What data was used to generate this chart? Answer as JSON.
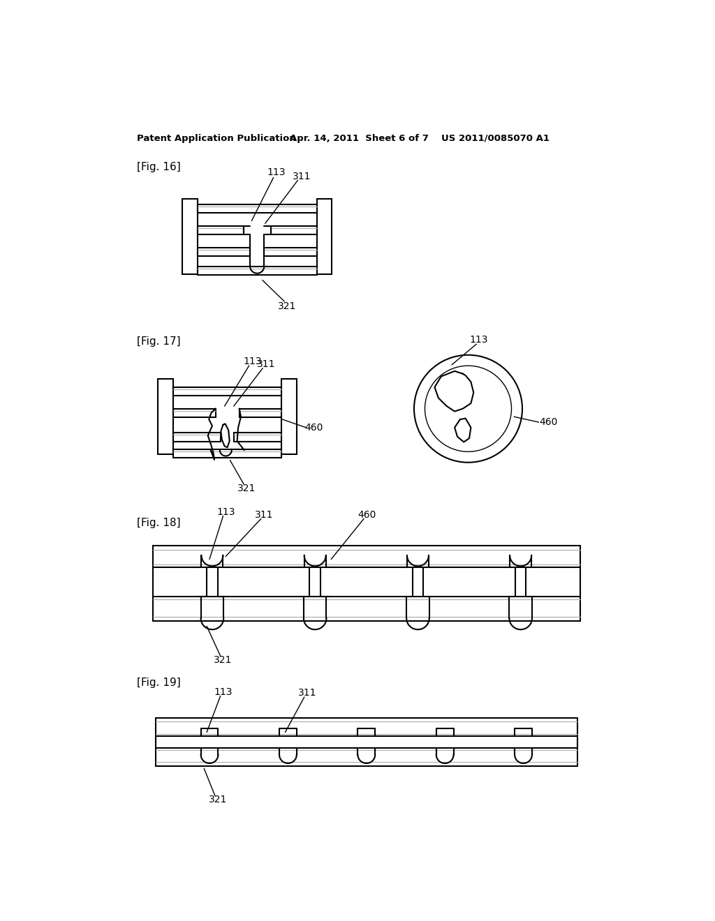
{
  "bg_color": "#ffffff",
  "line_color": "#000000",
  "gray_color": "#aaaaaa",
  "header_left": "Patent Application Publication",
  "header_mid": "Apr. 14, 2011  Sheet 6 of 7",
  "header_right": "US 2011/0085070 A1",
  "fig16_label": "[Fig. 16]",
  "fig17_label": "[Fig. 17]",
  "fig18_label": "[Fig. 18]",
  "fig19_label": "[Fig. 19]"
}
